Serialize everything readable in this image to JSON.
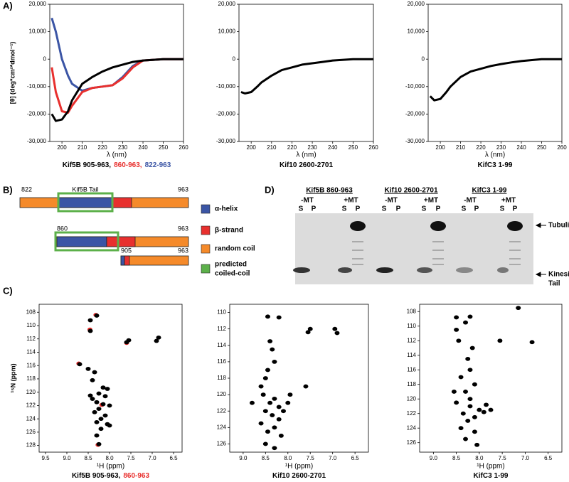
{
  "panel_labels": {
    "a": "A)",
    "b": "B)",
    "c": "C)",
    "d": "D)"
  },
  "chart_data": [
    {
      "type": "line",
      "title": [
        {
          "text": "Kif5B 905-963,",
          "color": "#000000"
        },
        {
          "text": "860-963,",
          "color": "#e8302e"
        },
        {
          "text": "822-963",
          "color": "#3b55a5"
        }
      ],
      "xlabel": "λ (nm)",
      "ylabel": "[θ] (deg*cm²*dmol⁻¹)",
      "x": [
        195,
        197,
        200,
        203,
        205,
        210,
        215,
        220,
        225,
        230,
        235,
        240,
        250,
        260
      ],
      "series": [
        {
          "color": "#3b55a5",
          "values": [
            15000,
            10000,
            0,
            -6000,
            -9000,
            -11500,
            -10500,
            -10000,
            -9500,
            -6500,
            -2500,
            -500,
            0,
            0
          ]
        },
        {
          "color": "#e8302e",
          "values": [
            -3000,
            -12000,
            -19000,
            -19500,
            -17000,
            -12000,
            -10500,
            -10000,
            -9500,
            -7000,
            -3000,
            -500,
            0,
            0
          ]
        },
        {
          "color": "#000000",
          "values": [
            -20000,
            -22500,
            -22000,
            -19000,
            -15000,
            -9000,
            -6500,
            -4500,
            -3000,
            -2000,
            -1000,
            -500,
            0,
            0
          ]
        }
      ],
      "xlim": [
        194,
        260
      ],
      "xticks": [
        200,
        210,
        220,
        230,
        240,
        250,
        260
      ],
      "ylim": [
        -30000,
        20000
      ],
      "yticks": [
        {
          "value": 20000,
          "label": "20,000"
        },
        {
          "value": 10000,
          "label": "10,000"
        },
        0,
        {
          "value": -10000,
          "label": "-10,000"
        },
        {
          "value": -20000,
          "label": "-20,000"
        },
        {
          "value": -30000,
          "label": "-30,000"
        }
      ]
    },
    {
      "type": "line",
      "title": [
        {
          "text": "Kif10 2600-2701",
          "color": "#000000"
        }
      ],
      "xlabel": "λ (nm)",
      "x": [
        195,
        197,
        200,
        203,
        205,
        210,
        215,
        220,
        225,
        230,
        235,
        240,
        250,
        260
      ],
      "series": [
        {
          "color": "#000000",
          "values": [
            -12000,
            -12500,
            -12000,
            -10000,
            -8500,
            -6000,
            -4000,
            -3000,
            -2000,
            -1500,
            -1000,
            -500,
            0,
            0
          ]
        }
      ],
      "xlim": [
        194,
        260
      ],
      "xticks": [
        200,
        210,
        220,
        230,
        240,
        250,
        260
      ],
      "ylim": [
        -30000,
        20000
      ],
      "yticks": [
        {
          "value": 20000,
          "label": "20,000"
        },
        {
          "value": 10000,
          "label": "10,000"
        },
        0,
        {
          "value": -10000,
          "label": "-10,000"
        },
        {
          "value": -20000,
          "label": "-20,000"
        },
        {
          "value": -30000,
          "label": "-30,000"
        }
      ]
    },
    {
      "type": "line",
      "title": [
        {
          "text": "KifC3 1-99",
          "color": "#000000"
        }
      ],
      "xlabel": "λ (nm)",
      "x": [
        195,
        197,
        200,
        203,
        205,
        210,
        215,
        220,
        225,
        230,
        235,
        240,
        250,
        260
      ],
      "series": [
        {
          "color": "#000000",
          "values": [
            -13500,
            -15000,
            -14500,
            -12000,
            -10000,
            -6500,
            -4500,
            -3500,
            -2500,
            -1800,
            -1200,
            -700,
            0,
            0
          ]
        }
      ],
      "xlim": [
        194,
        260
      ],
      "xticks": [
        200,
        210,
        220,
        230,
        240,
        250,
        260
      ],
      "ylim": [
        -30000,
        20000
      ],
      "yticks": [
        {
          "value": 20000,
          "label": "20,000"
        },
        {
          "value": 10000,
          "label": "10,000"
        },
        0,
        {
          "value": -10000,
          "label": "-10,000"
        },
        {
          "value": -20000,
          "label": "-20,000"
        },
        {
          "value": -30000,
          "label": "-30,000"
        }
      ]
    },
    {
      "type": "scatter",
      "title": [
        {
          "text": "Kif5B 905-963,",
          "color": "#000000"
        },
        {
          "text": "860-963",
          "color": "#e8302e"
        }
      ],
      "xlabel": "¹H (ppm)",
      "ylabel": "¹⁵N (ppm)",
      "series": [
        {
          "color": "#e8302e",
          "x": [
            8.72,
            8.46,
            8.32,
            7.6,
            8.18,
            8.27
          ],
          "y": [
            115.7,
            110.6,
            108.4,
            112.6,
            121.9,
            127.9
          ]
        },
        {
          "color": "#000000",
          "x": [
            8.3,
            8.45,
            8.45,
            7.55,
            7.6,
            6.85,
            6.9,
            8.7,
            8.5,
            8.35,
            8.4,
            8.15,
            8.05,
            8.25,
            8.1,
            8.4,
            8.3,
            8.15,
            8.0,
            8.25,
            8.35,
            8.1,
            8.2,
            8.3,
            8.05,
            8.2,
            8.3,
            8.25,
            8.0,
            8.45
          ],
          "y": [
            108.5,
            109.2,
            110.8,
            112.2,
            112.5,
            111.8,
            112.3,
            115.8,
            116.5,
            117,
            118.2,
            119.3,
            119.5,
            120.2,
            120.6,
            121,
            121.5,
            121.8,
            122,
            122.5,
            123,
            123.5,
            124,
            124.5,
            124.8,
            125.5,
            126.5,
            127.8,
            125,
            120.5
          ]
        }
      ],
      "xlim": [
        9.65,
        6.3
      ],
      "xticks": [
        9.5,
        {
          "value": 9,
          "label": "9.0"
        },
        8.5,
        {
          "value": 8,
          "label": "8.0"
        },
        7.5,
        {
          "value": 7,
          "label": "7.0"
        },
        6.5
      ],
      "ylim": [
        129,
        106.8
      ],
      "yticks": [
        108,
        110,
        112,
        114,
        116,
        118,
        120,
        122,
        124,
        126,
        128
      ]
    },
    {
      "type": "scatter",
      "title": [
        {
          "text": "Kif10 2600-2701",
          "color": "#000000"
        }
      ],
      "xlabel": "¹H (ppm)",
      "series": [
        {
          "color": "#000000",
          "x": [
            8.45,
            8.2,
            7.5,
            7.55,
            6.95,
            6.9,
            8.4,
            8.35,
            8.3,
            8.45,
            8.5,
            8.6,
            8.55,
            8.3,
            8.4,
            8.2,
            8.5,
            8.35,
            8.2,
            8.6,
            8.3,
            8.45,
            8.1,
            8.0,
            7.95,
            8.15,
            8.5,
            8.3,
            7.6,
            8.8
          ],
          "y": [
            110.5,
            110.6,
            112,
            112.4,
            112,
            112.5,
            113.5,
            114.5,
            116,
            117,
            118,
            119,
            120,
            120.5,
            121,
            121.5,
            122,
            122.5,
            123,
            123.5,
            124,
            124.5,
            122,
            121,
            120,
            125,
            126,
            126.5,
            119,
            121
          ]
        }
      ],
      "xlim": [
        9.3,
        6.2
      ],
      "xticks": [
        {
          "value": 9,
          "label": "9.0"
        },
        8.5,
        {
          "value": 8,
          "label": "8.0"
        },
        7.5,
        {
          "value": 7,
          "label": "7.0"
        },
        6.5
      ],
      "ylim": [
        127,
        109
      ],
      "yticks": [
        110,
        112,
        114,
        116,
        118,
        120,
        122,
        124,
        126
      ]
    },
    {
      "type": "scatter",
      "title": [
        {
          "text": "KifC3 1-99",
          "color": "#000000"
        }
      ],
      "xlabel": "¹H (ppm)",
      "series": [
        {
          "color": "#000000",
          "x": [
            7.15,
            8.5,
            8.3,
            8.2,
            7.55,
            6.85,
            8.5,
            8.45,
            8.15,
            8.25,
            8.2,
            8.4,
            8.1,
            8.3,
            8.5,
            8.2,
            8.0,
            8.35,
            8.1,
            7.9,
            8.25,
            8.4,
            8.1,
            8.3,
            8.05,
            8.2,
            7.85,
            7.75,
            8.55
          ],
          "y": [
            107.5,
            108.8,
            109.5,
            108.7,
            112,
            112.2,
            110.5,
            112,
            113,
            114.5,
            116,
            117,
            118,
            119,
            120.5,
            121,
            121.5,
            122,
            122.5,
            121.8,
            123,
            124,
            124.5,
            125.5,
            126.3,
            120,
            120.8,
            121.5,
            119
          ]
        }
      ],
      "xlim": [
        9.3,
        6.2
      ],
      "xticks": [
        {
          "value": 9,
          "label": "9.0"
        },
        8.5,
        {
          "value": 8,
          "label": "8.0"
        },
        7.5,
        {
          "value": 7,
          "label": "7.0"
        },
        6.5
      ],
      "ylim": [
        127.3,
        107
      ],
      "yticks": [
        108,
        110,
        112,
        114,
        116,
        118,
        120,
        122,
        124,
        126
      ]
    }
  ],
  "domains": {
    "tail_label": "Kif5B Tail",
    "rows": [
      {
        "start": "822",
        "end": "963"
      },
      {
        "start": "860",
        "end": "963"
      },
      {
        "start": "905",
        "end": "963"
      }
    ],
    "legend": [
      [
        "α-helix"
      ],
      [
        "β-strand"
      ],
      [
        "random coil"
      ],
      [
        "predicted",
        "coiled-coil"
      ]
    ]
  },
  "gel": {
    "constructs": [
      "Kif5B 860-963",
      "Kif10 2600-2701",
      "KifC3 1-99"
    ],
    "conditions": [
      "-MT",
      "+MT",
      "-MT",
      "+MT",
      "-MT",
      "+MT"
    ],
    "lanes": [
      "S",
      "P",
      "S",
      "P",
      "S",
      "P",
      "S",
      "P",
      "S",
      "P",
      "S",
      "P"
    ],
    "tubulin": "Tubulin",
    "kinesin_tail": [
      "Kinesin",
      "Tail"
    ]
  }
}
